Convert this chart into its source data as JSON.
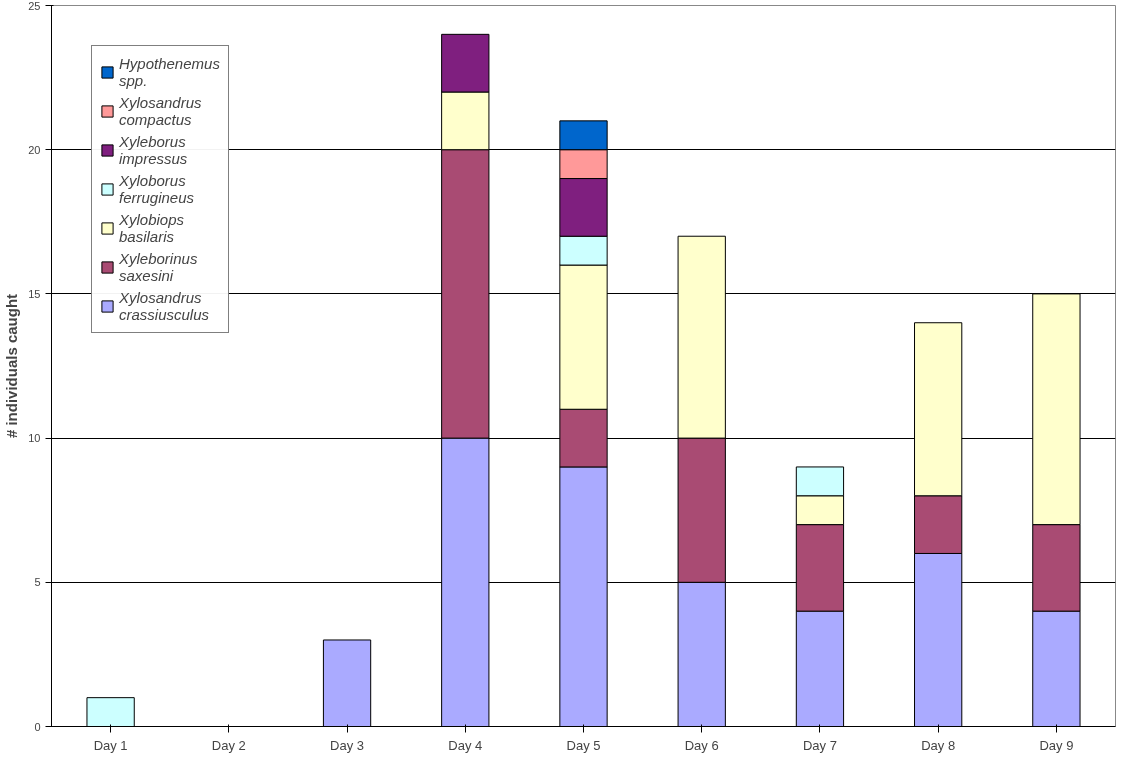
{
  "chart_data": {
    "type": "bar",
    "stacked": true,
    "ylabel": "# individuals caught",
    "categories": [
      "Day 1",
      "Day 2",
      "Day 3",
      "Day 4",
      "Day 5",
      "Day 6",
      "Day 7",
      "Day 8",
      "Day 9"
    ],
    "ylim": [
      0,
      25
    ],
    "yticks": [
      0,
      5,
      10,
      15,
      20,
      25
    ],
    "grid": "y",
    "legend": "top left",
    "series": [
      {
        "name": "Xylosandrus crassiusculus",
        "color": "#aaaaff",
        "values": [
          null,
          null,
          3,
          10,
          9,
          5,
          4,
          6,
          4
        ]
      },
      {
        "name": "Xyleborinus saxesini",
        "color": "#a94b73",
        "values": [
          null,
          null,
          null,
          10,
          2,
          5,
          3,
          2,
          3
        ]
      },
      {
        "name": "Xylobiops basilaris",
        "color": "#ffffcc",
        "values": [
          null,
          null,
          null,
          2,
          5,
          7,
          1,
          6,
          8
        ]
      },
      {
        "name": "Xyloborus ferrugineus",
        "color": "#ccffff",
        "values": [
          1,
          null,
          null,
          null,
          1,
          null,
          1,
          null,
          null
        ]
      },
      {
        "name": "Xyleborus impressus",
        "color": "#7f1f7f",
        "values": [
          null,
          null,
          null,
          2,
          2,
          null,
          null,
          null,
          null
        ]
      },
      {
        "name": "Xylosandrus compactus",
        "color": "#ff9999",
        "values": [
          null,
          null,
          null,
          null,
          1,
          null,
          null,
          null,
          null
        ]
      },
      {
        "name": "Hypothenemus spp.",
        "color": "#0066cc",
        "values": [
          null,
          null,
          null,
          null,
          1,
          null,
          null,
          null,
          null
        ]
      }
    ]
  }
}
